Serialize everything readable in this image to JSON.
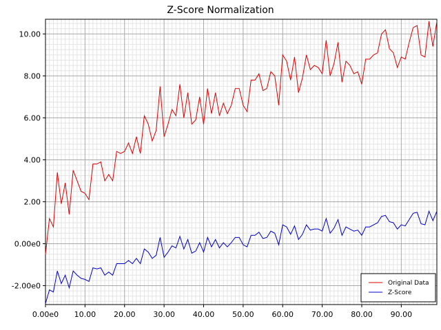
{
  "chart_data": {
    "type": "line",
    "title": "Z-Score Normalization",
    "xlabel": "",
    "ylabel": "",
    "xlim": [
      0,
      99
    ],
    "ylim": [
      -2.9,
      10.7
    ],
    "x_ticks": [
      0,
      10,
      20,
      30,
      40,
      50,
      60,
      70,
      80,
      90
    ],
    "x_tick_labels": [
      "0.00e0",
      "10.00",
      "20.00",
      "30.00",
      "40.00",
      "50.00",
      "60.00",
      "70.00",
      "80.00",
      "90.00"
    ],
    "y_ticks": [
      -2,
      0,
      2,
      4,
      6,
      8,
      10
    ],
    "y_tick_labels": [
      "-2.00e0",
      "0.00e0",
      "2.00",
      "4.00",
      "6.00",
      "8.00",
      "10.00"
    ],
    "grid": true,
    "legend_position": "bottom-right",
    "series": [
      {
        "name": "Original Data",
        "color": "#dd0000",
        "values": [
          -0.5,
          1.2,
          0.8,
          3.4,
          1.9,
          2.9,
          1.4,
          3.5,
          3.0,
          2.5,
          2.4,
          2.1,
          3.8,
          3.8,
          3.9,
          3.0,
          3.3,
          3.0,
          4.4,
          4.3,
          4.4,
          4.8,
          4.3,
          5.1,
          4.3,
          6.1,
          5.7,
          4.9,
          5.4,
          7.5,
          5.1,
          5.7,
          6.4,
          6.1,
          7.6,
          6.0,
          7.2,
          5.7,
          5.9,
          7.0,
          5.7,
          7.4,
          6.2,
          7.2,
          6.1,
          6.7,
          6.2,
          6.6,
          7.4,
          7.4,
          6.6,
          6.3,
          7.8,
          7.8,
          8.1,
          7.3,
          7.4,
          8.2,
          8.0,
          6.6,
          9.0,
          8.7,
          7.8,
          8.9,
          7.2,
          7.9,
          9.0,
          8.3,
          8.5,
          8.4,
          8.1,
          9.7,
          8.0,
          8.6,
          9.6,
          7.7,
          8.7,
          8.5,
          8.1,
          8.2,
          7.6,
          8.8,
          8.8,
          9.0,
          9.1,
          10.0,
          10.2,
          9.3,
          9.1,
          8.4,
          8.9,
          8.8,
          9.6,
          10.3,
          10.4,
          9.0,
          8.9,
          10.6,
          9.4,
          10.6
        ]
      },
      {
        "name": "Z-Score",
        "color": "#0000cc",
        "values": [
          -2.85,
          -2.2,
          -2.3,
          -1.3,
          -1.9,
          -1.5,
          -2.1,
          -1.3,
          -1.5,
          -1.65,
          -1.7,
          -1.8,
          -1.15,
          -1.2,
          -1.15,
          -1.5,
          -1.35,
          -1.5,
          -0.95,
          -0.95,
          -0.95,
          -0.8,
          -0.95,
          -0.7,
          -0.95,
          -0.25,
          -0.4,
          -0.7,
          -0.55,
          0.3,
          -0.65,
          -0.4,
          -0.1,
          -0.2,
          0.35,
          -0.25,
          0.2,
          -0.45,
          -0.35,
          0.05,
          -0.4,
          0.3,
          -0.15,
          0.2,
          -0.2,
          0.05,
          -0.15,
          0.05,
          0.3,
          0.3,
          -0.05,
          -0.15,
          0.4,
          0.4,
          0.55,
          0.25,
          0.3,
          0.6,
          0.5,
          -0.05,
          0.9,
          0.8,
          0.45,
          0.85,
          0.2,
          0.45,
          0.9,
          0.65,
          0.7,
          0.7,
          0.6,
          1.2,
          0.5,
          0.75,
          1.15,
          0.4,
          0.8,
          0.7,
          0.6,
          0.65,
          0.4,
          0.8,
          0.8,
          0.9,
          1.0,
          1.3,
          1.35,
          1.05,
          1.0,
          0.7,
          0.9,
          0.85,
          1.15,
          1.45,
          1.5,
          0.95,
          0.9,
          1.55,
          1.1,
          1.55
        ]
      }
    ]
  }
}
